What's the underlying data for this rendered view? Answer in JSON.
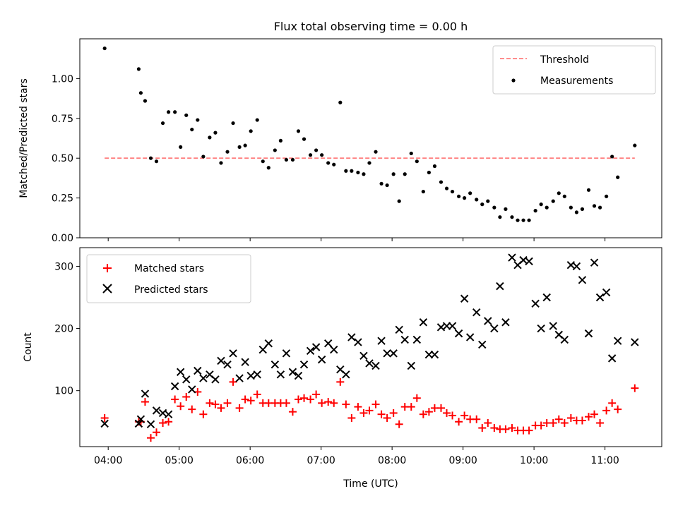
{
  "title": "Flux total observing time = 0.00 h",
  "chart_data": [
    {
      "type": "scatter",
      "panel": "top",
      "ylabel": "Matched/Predicted stars",
      "xlim": [
        3.6,
        11.8
      ],
      "ylim": [
        0.0,
        1.25
      ],
      "yticks": [
        0.0,
        0.25,
        0.5,
        0.75,
        1.0
      ],
      "ytick_labels": [
        "0.00",
        "0.25",
        "0.50",
        "0.75",
        "1.00"
      ],
      "legend_position": "upper right",
      "threshold": {
        "name": "Threshold",
        "value": 0.5,
        "x_range": [
          3.95,
          11.42
        ],
        "color": "#ff7f7f",
        "style": "dashed"
      },
      "series": [
        {
          "name": "Measurements",
          "color": "#000000",
          "marker": "dot",
          "points": [
            [
              3.95,
              1.19
            ],
            [
              4.43,
              1.06
            ],
            [
              4.46,
              0.91
            ],
            [
              4.52,
              0.86
            ],
            [
              4.6,
              0.5
            ],
            [
              4.68,
              0.48
            ],
            [
              4.77,
              0.72
            ],
            [
              4.85,
              0.79
            ],
            [
              4.94,
              0.79
            ],
            [
              5.02,
              0.57
            ],
            [
              5.1,
              0.77
            ],
            [
              5.18,
              0.68
            ],
            [
              5.26,
              0.74
            ],
            [
              5.34,
              0.51
            ],
            [
              5.43,
              0.63
            ],
            [
              5.51,
              0.66
            ],
            [
              5.59,
              0.47
            ],
            [
              5.68,
              0.54
            ],
            [
              5.76,
              0.72
            ],
            [
              5.85,
              0.57
            ],
            [
              5.93,
              0.58
            ],
            [
              6.01,
              0.67
            ],
            [
              6.1,
              0.74
            ],
            [
              6.18,
              0.48
            ],
            [
              6.26,
              0.44
            ],
            [
              6.35,
              0.55
            ],
            [
              6.43,
              0.61
            ],
            [
              6.51,
              0.49
            ],
            [
              6.6,
              0.49
            ],
            [
              6.68,
              0.67
            ],
            [
              6.76,
              0.62
            ],
            [
              6.85,
              0.52
            ],
            [
              6.93,
              0.55
            ],
            [
              7.01,
              0.52
            ],
            [
              7.1,
              0.47
            ],
            [
              7.18,
              0.46
            ],
            [
              7.27,
              0.85
            ],
            [
              7.35,
              0.42
            ],
            [
              7.43,
              0.42
            ],
            [
              7.52,
              0.41
            ],
            [
              7.6,
              0.4
            ],
            [
              7.68,
              0.47
            ],
            [
              7.77,
              0.54
            ],
            [
              7.85,
              0.34
            ],
            [
              7.93,
              0.33
            ],
            [
              8.02,
              0.4
            ],
            [
              8.1,
              0.23
            ],
            [
              8.18,
              0.4
            ],
            [
              8.27,
              0.53
            ],
            [
              8.35,
              0.48
            ],
            [
              8.44,
              0.29
            ],
            [
              8.52,
              0.41
            ],
            [
              8.6,
              0.45
            ],
            [
              8.69,
              0.35
            ],
            [
              8.77,
              0.31
            ],
            [
              8.85,
              0.29
            ],
            [
              8.94,
              0.26
            ],
            [
              9.02,
              0.25
            ],
            [
              9.1,
              0.28
            ],
            [
              9.19,
              0.24
            ],
            [
              9.27,
              0.21
            ],
            [
              9.35,
              0.23
            ],
            [
              9.44,
              0.19
            ],
            [
              9.52,
              0.13
            ],
            [
              9.6,
              0.18
            ],
            [
              9.69,
              0.13
            ],
            [
              9.77,
              0.11
            ],
            [
              9.85,
              0.11
            ],
            [
              9.93,
              0.11
            ],
            [
              10.02,
              0.17
            ],
            [
              10.1,
              0.21
            ],
            [
              10.18,
              0.19
            ],
            [
              10.27,
              0.23
            ],
            [
              10.35,
              0.28
            ],
            [
              10.43,
              0.26
            ],
            [
              10.52,
              0.19
            ],
            [
              10.6,
              0.16
            ],
            [
              10.68,
              0.18
            ],
            [
              10.77,
              0.3
            ],
            [
              10.85,
              0.2
            ],
            [
              10.93,
              0.19
            ],
            [
              11.02,
              0.26
            ],
            [
              11.1,
              0.51
            ],
            [
              11.18,
              0.38
            ],
            [
              11.42,
              0.58
            ]
          ]
        }
      ]
    },
    {
      "type": "scatter",
      "panel": "bottom",
      "xlabel": "Time (UTC)",
      "ylabel": "Count",
      "xlim": [
        3.6,
        11.8
      ],
      "ylim": [
        10,
        330
      ],
      "xticks": [
        4,
        5,
        6,
        7,
        8,
        9,
        10,
        11
      ],
      "xtick_labels": [
        "04:00",
        "05:00",
        "06:00",
        "07:00",
        "08:00",
        "09:00",
        "10:00",
        "11:00"
      ],
      "yticks": [
        100,
        200,
        300
      ],
      "ytick_labels": [
        "100",
        "200",
        "300"
      ],
      "legend_position": "upper left",
      "series": [
        {
          "name": "Matched stars",
          "color": "#ff0000",
          "marker": "plus",
          "points": [
            [
              3.95,
              56
            ],
            [
              4.43,
              50
            ],
            [
              4.46,
              50
            ],
            [
              4.52,
              82
            ],
            [
              4.6,
              24
            ],
            [
              4.68,
              33
            ],
            [
              4.77,
              48
            ],
            [
              4.85,
              50
            ],
            [
              4.94,
              86
            ],
            [
              5.02,
              75
            ],
            [
              5.1,
              90
            ],
            [
              5.18,
              70
            ],
            [
              5.26,
              98
            ],
            [
              5.34,
              62
            ],
            [
              5.43,
              80
            ],
            [
              5.51,
              78
            ],
            [
              5.59,
              72
            ],
            [
              5.68,
              80
            ],
            [
              5.76,
              114
            ],
            [
              5.85,
              72
            ],
            [
              5.93,
              86
            ],
            [
              6.01,
              84
            ],
            [
              6.1,
              94
            ],
            [
              6.18,
              80
            ],
            [
              6.26,
              80
            ],
            [
              6.35,
              80
            ],
            [
              6.43,
              80
            ],
            [
              6.51,
              80
            ],
            [
              6.6,
              66
            ],
            [
              6.68,
              86
            ],
            [
              6.76,
              88
            ],
            [
              6.85,
              86
            ],
            [
              6.93,
              94
            ],
            [
              7.01,
              80
            ],
            [
              7.1,
              82
            ],
            [
              7.18,
              80
            ],
            [
              7.27,
              114
            ],
            [
              7.35,
              78
            ],
            [
              7.43,
              56
            ],
            [
              7.52,
              74
            ],
            [
              7.6,
              64
            ],
            [
              7.68,
              68
            ],
            [
              7.77,
              78
            ],
            [
              7.85,
              62
            ],
            [
              7.93,
              56
            ],
            [
              8.02,
              64
            ],
            [
              8.1,
              46
            ],
            [
              8.18,
              74
            ],
            [
              8.27,
              74
            ],
            [
              8.35,
              88
            ],
            [
              8.44,
              62
            ],
            [
              8.52,
              66
            ],
            [
              8.6,
              72
            ],
            [
              8.69,
              72
            ],
            [
              8.77,
              64
            ],
            [
              8.85,
              60
            ],
            [
              8.94,
              50
            ],
            [
              9.02,
              60
            ],
            [
              9.1,
              54
            ],
            [
              9.19,
              54
            ],
            [
              9.27,
              40
            ],
            [
              9.35,
              48
            ],
            [
              9.44,
              40
            ],
            [
              9.52,
              38
            ],
            [
              9.6,
              38
            ],
            [
              9.69,
              40
            ],
            [
              9.77,
              36
            ],
            [
              9.85,
              36
            ],
            [
              9.93,
              36
            ],
            [
              10.02,
              44
            ],
            [
              10.1,
              44
            ],
            [
              10.18,
              48
            ],
            [
              10.27,
              48
            ],
            [
              10.35,
              54
            ],
            [
              10.43,
              48
            ],
            [
              10.52,
              56
            ],
            [
              10.6,
              52
            ],
            [
              10.68,
              52
            ],
            [
              10.77,
              58
            ],
            [
              10.85,
              62
            ],
            [
              10.93,
              48
            ],
            [
              11.02,
              68
            ],
            [
              11.1,
              80
            ],
            [
              11.18,
              70
            ],
            [
              11.42,
              104
            ]
          ]
        },
        {
          "name": "Predicted stars",
          "color": "#000000",
          "marker": "x",
          "points": [
            [
              3.95,
              47
            ],
            [
              4.43,
              47
            ],
            [
              4.46,
              54
            ],
            [
              4.52,
              95
            ],
            [
              4.6,
              46
            ],
            [
              4.68,
              68
            ],
            [
              4.77,
              64
            ],
            [
              4.85,
              62
            ],
            [
              4.94,
              107
            ],
            [
              5.02,
              130
            ],
            [
              5.1,
              118
            ],
            [
              5.18,
              102
            ],
            [
              5.26,
              132
            ],
            [
              5.34,
              120
            ],
            [
              5.43,
              126
            ],
            [
              5.51,
              118
            ],
            [
              5.59,
              148
            ],
            [
              5.68,
              142
            ],
            [
              5.76,
              160
            ],
            [
              5.85,
              120
            ],
            [
              5.93,
              146
            ],
            [
              6.01,
              124
            ],
            [
              6.1,
              126
            ],
            [
              6.18,
              166
            ],
            [
              6.26,
              176
            ],
            [
              6.35,
              142
            ],
            [
              6.43,
              126
            ],
            [
              6.51,
              160
            ],
            [
              6.6,
              130
            ],
            [
              6.68,
              124
            ],
            [
              6.76,
              142
            ],
            [
              6.85,
              164
            ],
            [
              6.93,
              170
            ],
            [
              7.01,
              150
            ],
            [
              7.1,
              176
            ],
            [
              7.18,
              166
            ],
            [
              7.27,
              134
            ],
            [
              7.35,
              126
            ],
            [
              7.43,
              186
            ],
            [
              7.52,
              178
            ],
            [
              7.6,
              156
            ],
            [
              7.68,
              144
            ],
            [
              7.77,
              140
            ],
            [
              7.85,
              180
            ],
            [
              7.93,
              160
            ],
            [
              8.02,
              160
            ],
            [
              8.1,
              198
            ],
            [
              8.18,
              182
            ],
            [
              8.27,
              140
            ],
            [
              8.35,
              182
            ],
            [
              8.44,
              210
            ],
            [
              8.52,
              158
            ],
            [
              8.6,
              158
            ],
            [
              8.69,
              202
            ],
            [
              8.77,
              204
            ],
            [
              8.85,
              204
            ],
            [
              8.94,
              192
            ],
            [
              9.02,
              248
            ],
            [
              9.1,
              186
            ],
            [
              9.19,
              226
            ],
            [
              9.27,
              174
            ],
            [
              9.35,
              212
            ],
            [
              9.44,
              200
            ],
            [
              9.52,
              268
            ],
            [
              9.6,
              210
            ],
            [
              9.69,
              314
            ],
            [
              9.77,
              302
            ],
            [
              9.85,
              310
            ],
            [
              9.93,
              308
            ],
            [
              10.02,
              240
            ],
            [
              10.1,
              200
            ],
            [
              10.18,
              250
            ],
            [
              10.27,
              204
            ],
            [
              10.35,
              190
            ],
            [
              10.43,
              182
            ],
            [
              10.52,
              302
            ],
            [
              10.6,
              300
            ],
            [
              10.68,
              278
            ],
            [
              10.77,
              192
            ],
            [
              10.85,
              306
            ],
            [
              10.93,
              250
            ],
            [
              11.02,
              258
            ],
            [
              11.1,
              152
            ],
            [
              11.18,
              180
            ],
            [
              11.42,
              178
            ]
          ]
        }
      ]
    }
  ]
}
